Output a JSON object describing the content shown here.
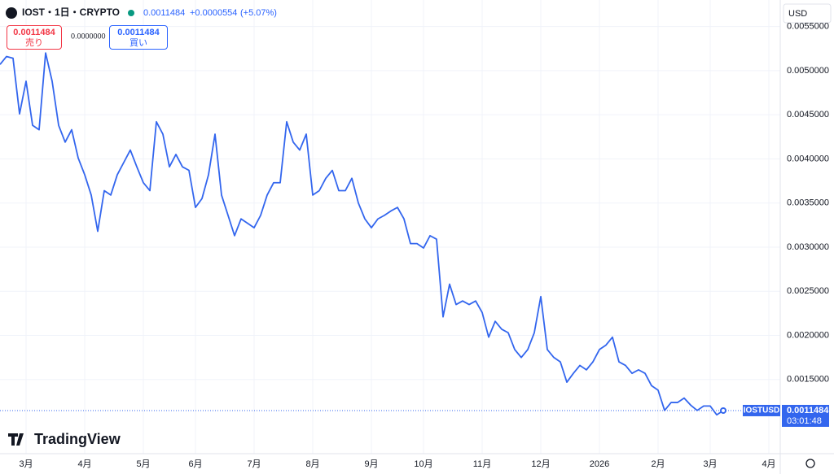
{
  "chart_data": {
    "type": "line",
    "title": "IOST・1日・CRYPTO",
    "categories": [
      null,
      null,
      null,
      null,
      "3月",
      null,
      null,
      null,
      null,
      null,
      null,
      null,
      null,
      "4月",
      null,
      null,
      null,
      null,
      null,
      null,
      null,
      null,
      "5月",
      null,
      null,
      null,
      null,
      null,
      null,
      null,
      "6月",
      null,
      null,
      null,
      null,
      null,
      null,
      null,
      null,
      "7月",
      null,
      null,
      null,
      null,
      null,
      null,
      null,
      null,
      "8月",
      null,
      null,
      null,
      null,
      null,
      null,
      null,
      null,
      "9月",
      null,
      null,
      null,
      null,
      null,
      null,
      null,
      "10月",
      null,
      null,
      null,
      null,
      null,
      null,
      null,
      null,
      "11月",
      null,
      null,
      null,
      null,
      null,
      null,
      null,
      null,
      "12月",
      null,
      null,
      null,
      null,
      null,
      null,
      null,
      null,
      "2026",
      null,
      null,
      null,
      null,
      null,
      null,
      null,
      null,
      "2月",
      null,
      null,
      null,
      null,
      null,
      null,
      null,
      "3月",
      null,
      null,
      null,
      null,
      null,
      null,
      null,
      null,
      "4月"
    ],
    "series": [
      {
        "name": "IOSTUSD",
        "color": "#3366ee",
        "values": [
          0.00507,
          0.00516,
          0.00514,
          0.00451,
          0.00488,
          0.00438,
          0.00433,
          0.0052,
          0.00488,
          0.00438,
          0.00419,
          0.00433,
          0.00401,
          0.00382,
          0.00359,
          0.00318,
          0.00364,
          0.00359,
          0.00382,
          0.00396,
          0.0041,
          0.00391,
          0.00373,
          0.00364,
          0.00442,
          0.00428,
          0.00391,
          0.00405,
          0.00391,
          0.00387,
          0.00345,
          0.00355,
          0.00382,
          0.00428,
          0.00359,
          0.00336,
          0.00313,
          0.00332,
          0.00327,
          0.00322,
          0.00336,
          0.00359,
          0.00373,
          0.00373,
          0.00442,
          0.00419,
          0.0041,
          0.00428,
          0.00359,
          0.00364,
          0.00378,
          0.00387,
          0.00364,
          0.00364,
          0.00378,
          0.0035,
          0.00332,
          0.00322,
          0.00332,
          0.00336,
          0.00341,
          0.00345,
          0.00332,
          0.00304,
          0.00304,
          0.00299,
          0.00313,
          0.00309,
          0.00221,
          0.00258,
          0.00235,
          0.00239,
          0.00235,
          0.00239,
          0.00226,
          0.00198,
          0.00216,
          0.00207,
          0.00203,
          0.00184,
          0.00175,
          0.00184,
          0.00203,
          0.00244,
          0.00184,
          0.00175,
          0.0017,
          0.00147,
          0.00157,
          0.00166,
          0.00161,
          0.0017,
          0.00184,
          0.00189,
          0.00198,
          0.0017,
          0.00166,
          0.00157,
          0.00161,
          0.00157,
          0.00143,
          0.00138,
          0.00115,
          0.00124,
          0.00124,
          0.00129,
          0.00121,
          0.00115,
          0.0012,
          0.0012,
          0.0011,
          0.0011484,
          null,
          null,
          null,
          null,
          null,
          null,
          null
        ]
      }
    ],
    "ylim": [
      0.00066,
      0.0058
    ],
    "yticks": [
      {
        "value": 0.0015,
        "label": "0.0015000"
      },
      {
        "value": 0.002,
        "label": "0.0020000"
      },
      {
        "value": 0.0025,
        "label": "0.0025000"
      },
      {
        "value": 0.003,
        "label": "0.0030000"
      },
      {
        "value": 0.0035,
        "label": "0.0035000"
      },
      {
        "value": 0.004,
        "label": "0.0040000"
      },
      {
        "value": 0.0045,
        "label": "0.0045000"
      },
      {
        "value": 0.005,
        "label": "0.0050000"
      },
      {
        "value": 0.0055,
        "label": "0.0055000"
      }
    ],
    "grid": true
  },
  "ui": {
    "last_price": "0.0011484",
    "change": "+0.0000554",
    "change_pct": "(+5.07%)",
    "sell_price": "0.0011484",
    "sell_label": "売り",
    "spread": "0.0000000",
    "buy_price": "0.0011484",
    "buy_label": "買い",
    "currency": "USD",
    "symbol": "IOSTUSD",
    "axis_price": "0.0011484",
    "countdown": "03:01:48",
    "logo": "TradingView"
  }
}
